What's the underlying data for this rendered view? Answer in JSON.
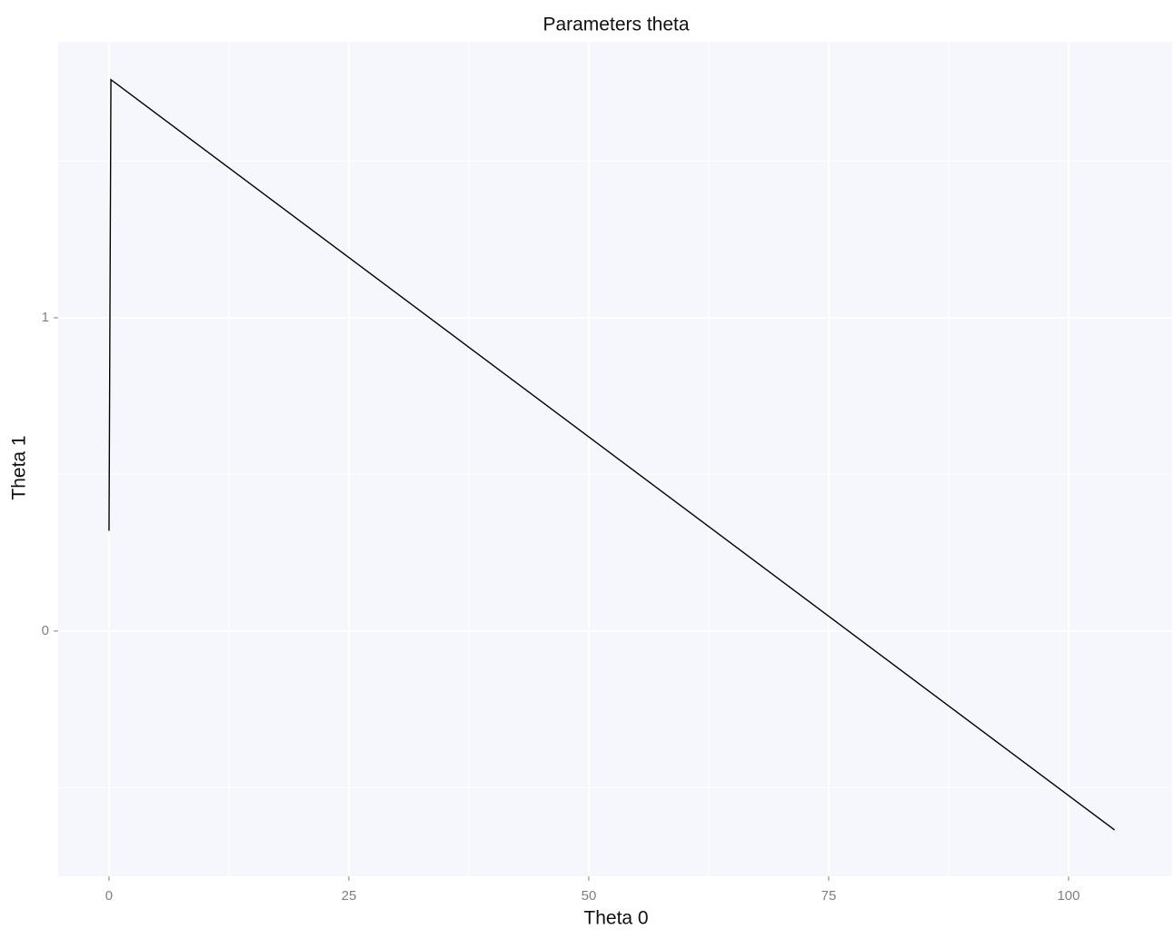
{
  "chart_data": {
    "type": "line",
    "title": "Parameters theta",
    "x_label": "Theta 0",
    "y_label": "Theta 1",
    "series": [
      {
        "color": "#000000",
        "x": [
          0,
          0.2,
          104.8
        ],
        "values": [
          0.32,
          1.76,
          -0.635
        ]
      }
    ],
    "xlim": [
      -5.3,
      110.8
    ],
    "xticks": [
      0,
      25,
      50,
      75,
      100
    ],
    "x_minor_ticks": [
      12.5,
      37.5,
      62.5,
      87.5
    ],
    "ylim": [
      -0.783,
      1.881
    ],
    "yticks": [
      0,
      1
    ],
    "y_minor_ticks": [
      -0.5,
      0.5,
      1.5
    ],
    "grid": true,
    "panel_color": "#f6f7fd"
  }
}
